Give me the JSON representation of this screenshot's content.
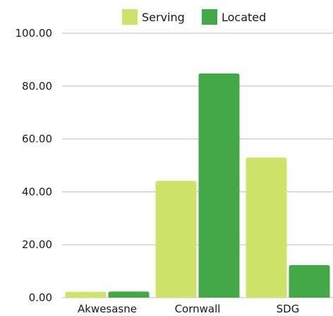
{
  "chart_data": {
    "type": "bar",
    "title": "",
    "xlabel": "",
    "ylabel": "",
    "categories": [
      "Akwesasne",
      "Cornwall",
      "SDG"
    ],
    "series": [
      {
        "name": "Serving",
        "color": "#cde36a",
        "values": [
          2.2,
          44.2,
          53.0
        ]
      },
      {
        "name": "Located",
        "color": "#45a847",
        "values": [
          2.3,
          84.8,
          12.3
        ]
      }
    ],
    "ylim": [
      0,
      100
    ],
    "yticks": [
      "0.00",
      "20.00",
      "40.00",
      "60.00",
      "80.00",
      "100.00"
    ],
    "grid": true,
    "legend_position": "top"
  }
}
